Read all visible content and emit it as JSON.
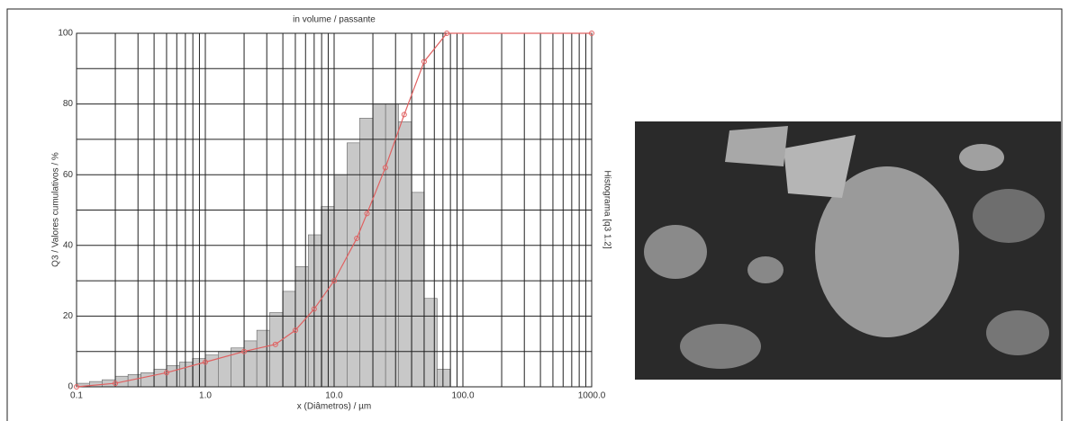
{
  "chart_data": {
    "type": "histogram",
    "title": "in volume / passante",
    "ylabel": "Q3 / Valores cumulativos / %",
    "y2label": "Histograma [q3 1.2]",
    "xlabel": "x (Diâmetros) / µm",
    "xscale": "log",
    "xlim": [
      0.1,
      1000
    ],
    "ylim": [
      0,
      100
    ],
    "xticks": [
      0.1,
      {
        "value": 1,
        "label": "1.0"
      },
      {
        "value": 10,
        "label": "10.0"
      },
      {
        "value": 100,
        "label": "100.0"
      },
      {
        "value": 1000,
        "label": "1000.0"
      }
    ],
    "yticks": [
      0,
      20,
      40,
      60,
      80,
      100
    ],
    "xgrid": [
      0.1,
      0.2,
      0.3,
      0.4,
      0.5,
      0.6,
      0.7,
      0.8,
      0.9,
      1,
      2,
      3,
      4,
      5,
      6,
      7,
      8,
      9,
      10,
      20,
      30,
      40,
      50,
      60,
      70,
      80,
      90,
      100,
      200,
      300,
      400,
      500,
      600,
      700,
      800,
      900,
      1000
    ],
    "ygrid": [
      0,
      10,
      20,
      30,
      40,
      50,
      60,
      70,
      80,
      90,
      100
    ],
    "histogram": {
      "color": "#c8c8c8",
      "bins": [
        0.1,
        0.126,
        0.158,
        0.2,
        0.251,
        0.316,
        0.398,
        0.501,
        0.631,
        0.794,
        1,
        1.26,
        1.58,
        2,
        2.51,
        3.16,
        3.98,
        5.01,
        6.31,
        7.94,
        10,
        12.6,
        15.8,
        20,
        25.1,
        31.6,
        39.8,
        50.1,
        63.1,
        79.4
      ],
      "counts": [
        1,
        1.5,
        2,
        3,
        3.5,
        4,
        5,
        6,
        7,
        8,
        9,
        10,
        11,
        13,
        16,
        21,
        27,
        34,
        43,
        51,
        60,
        69,
        76,
        80,
        80,
        75,
        55,
        25,
        5
      ]
    },
    "curve": {
      "color": "#e06060",
      "x": [
        0.1,
        0.2,
        0.5,
        1,
        2,
        3.5,
        5,
        7,
        10,
        15,
        18,
        25,
        35,
        50,
        75,
        1000
      ],
      "values": [
        0,
        1,
        4,
        7,
        10,
        12,
        16,
        22,
        30,
        42,
        49,
        62,
        77,
        92,
        100,
        100
      ]
    }
  }
}
